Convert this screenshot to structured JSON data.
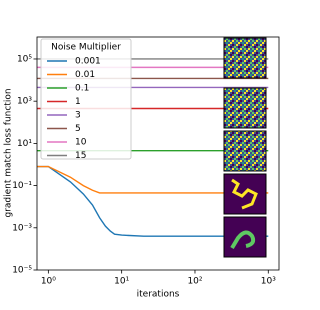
{
  "chart_data": {
    "type": "line",
    "x_label": "iterations",
    "y_label": "gradient match loss function",
    "xscale": "log",
    "yscale": "log",
    "xlim": [
      0.7,
      1400
    ],
    "ylim": [
      1e-05,
      1100000
    ],
    "xticks": [
      {
        "value": 1,
        "label": "10⁰"
      },
      {
        "value": 10,
        "label": "10¹"
      },
      {
        "value": 100,
        "label": "10²"
      },
      {
        "value": 1000,
        "label": "10³"
      }
    ],
    "yticks": [
      {
        "value": 1e-05,
        "label": "10⁻⁵"
      },
      {
        "value": 0.001,
        "label": "10⁻³"
      },
      {
        "value": 0.1,
        "label": "10⁻¹"
      },
      {
        "value": 10,
        "label": "10¹"
      },
      {
        "value": 1000,
        "label": "10³"
      },
      {
        "value": 100000,
        "label": "10⁵"
      }
    ],
    "legend_title": "Noise Multiplier",
    "legend": "upper left",
    "x": [
      0.7,
      1,
      2,
      3,
      4,
      5,
      6,
      7,
      8,
      10,
      20,
      50,
      100,
      200,
      500,
      1000
    ],
    "series": [
      {
        "name": "0.001",
        "color": "#1f77b4",
        "values": [
          0.8,
          0.8,
          0.15,
          0.04,
          0.012,
          0.003,
          0.0012,
          0.0007,
          0.0005,
          0.00045,
          0.0004,
          0.0004,
          0.0004,
          0.0004,
          0.0004,
          0.0004
        ]
      },
      {
        "name": "0.01",
        "color": "#ff7f0e",
        "values": [
          0.8,
          0.8,
          0.25,
          0.1,
          0.06,
          0.045,
          0.045,
          0.045,
          0.045,
          0.045,
          0.045,
          0.045,
          0.045,
          0.045,
          0.045,
          0.045
        ]
      },
      {
        "name": "0.1",
        "color": "#2ca02c",
        "values": [
          4.5,
          4.5,
          4.5,
          4.5,
          4.5,
          4.5,
          4.5,
          4.5,
          4.5,
          4.5,
          4.5,
          4.5,
          4.5,
          4.5,
          4.5,
          4.5
        ]
      },
      {
        "name": "1",
        "color": "#d62728",
        "values": [
          450,
          450,
          450,
          450,
          450,
          450,
          450,
          450,
          450,
          450,
          450,
          450,
          450,
          450,
          450,
          450
        ]
      },
      {
        "name": "3",
        "color": "#9467bd",
        "values": [
          4500,
          4500,
          4500,
          4500,
          4500,
          4500,
          4500,
          4500,
          4500,
          4500,
          4500,
          4500,
          4500,
          4500,
          4500,
          4500
        ]
      },
      {
        "name": "5",
        "color": "#8c564b",
        "values": [
          12000,
          12000,
          12000,
          12000,
          12000,
          12000,
          12000,
          12000,
          12000,
          12000,
          12000,
          12000,
          12000,
          12000,
          12000,
          12000
        ]
      },
      {
        "name": "10",
        "color": "#e377c2",
        "values": [
          40000,
          40000,
          40000,
          40000,
          40000,
          40000,
          40000,
          40000,
          40000,
          40000,
          40000,
          40000,
          40000,
          40000,
          40000,
          40000
        ]
      },
      {
        "name": "15",
        "color": "#7f7f7f",
        "values": [
          100000,
          100000,
          100000,
          100000,
          100000,
          100000,
          100000,
          100000,
          100000,
          100000,
          100000,
          100000,
          100000,
          100000,
          100000,
          100000
        ]
      }
    ]
  }
}
